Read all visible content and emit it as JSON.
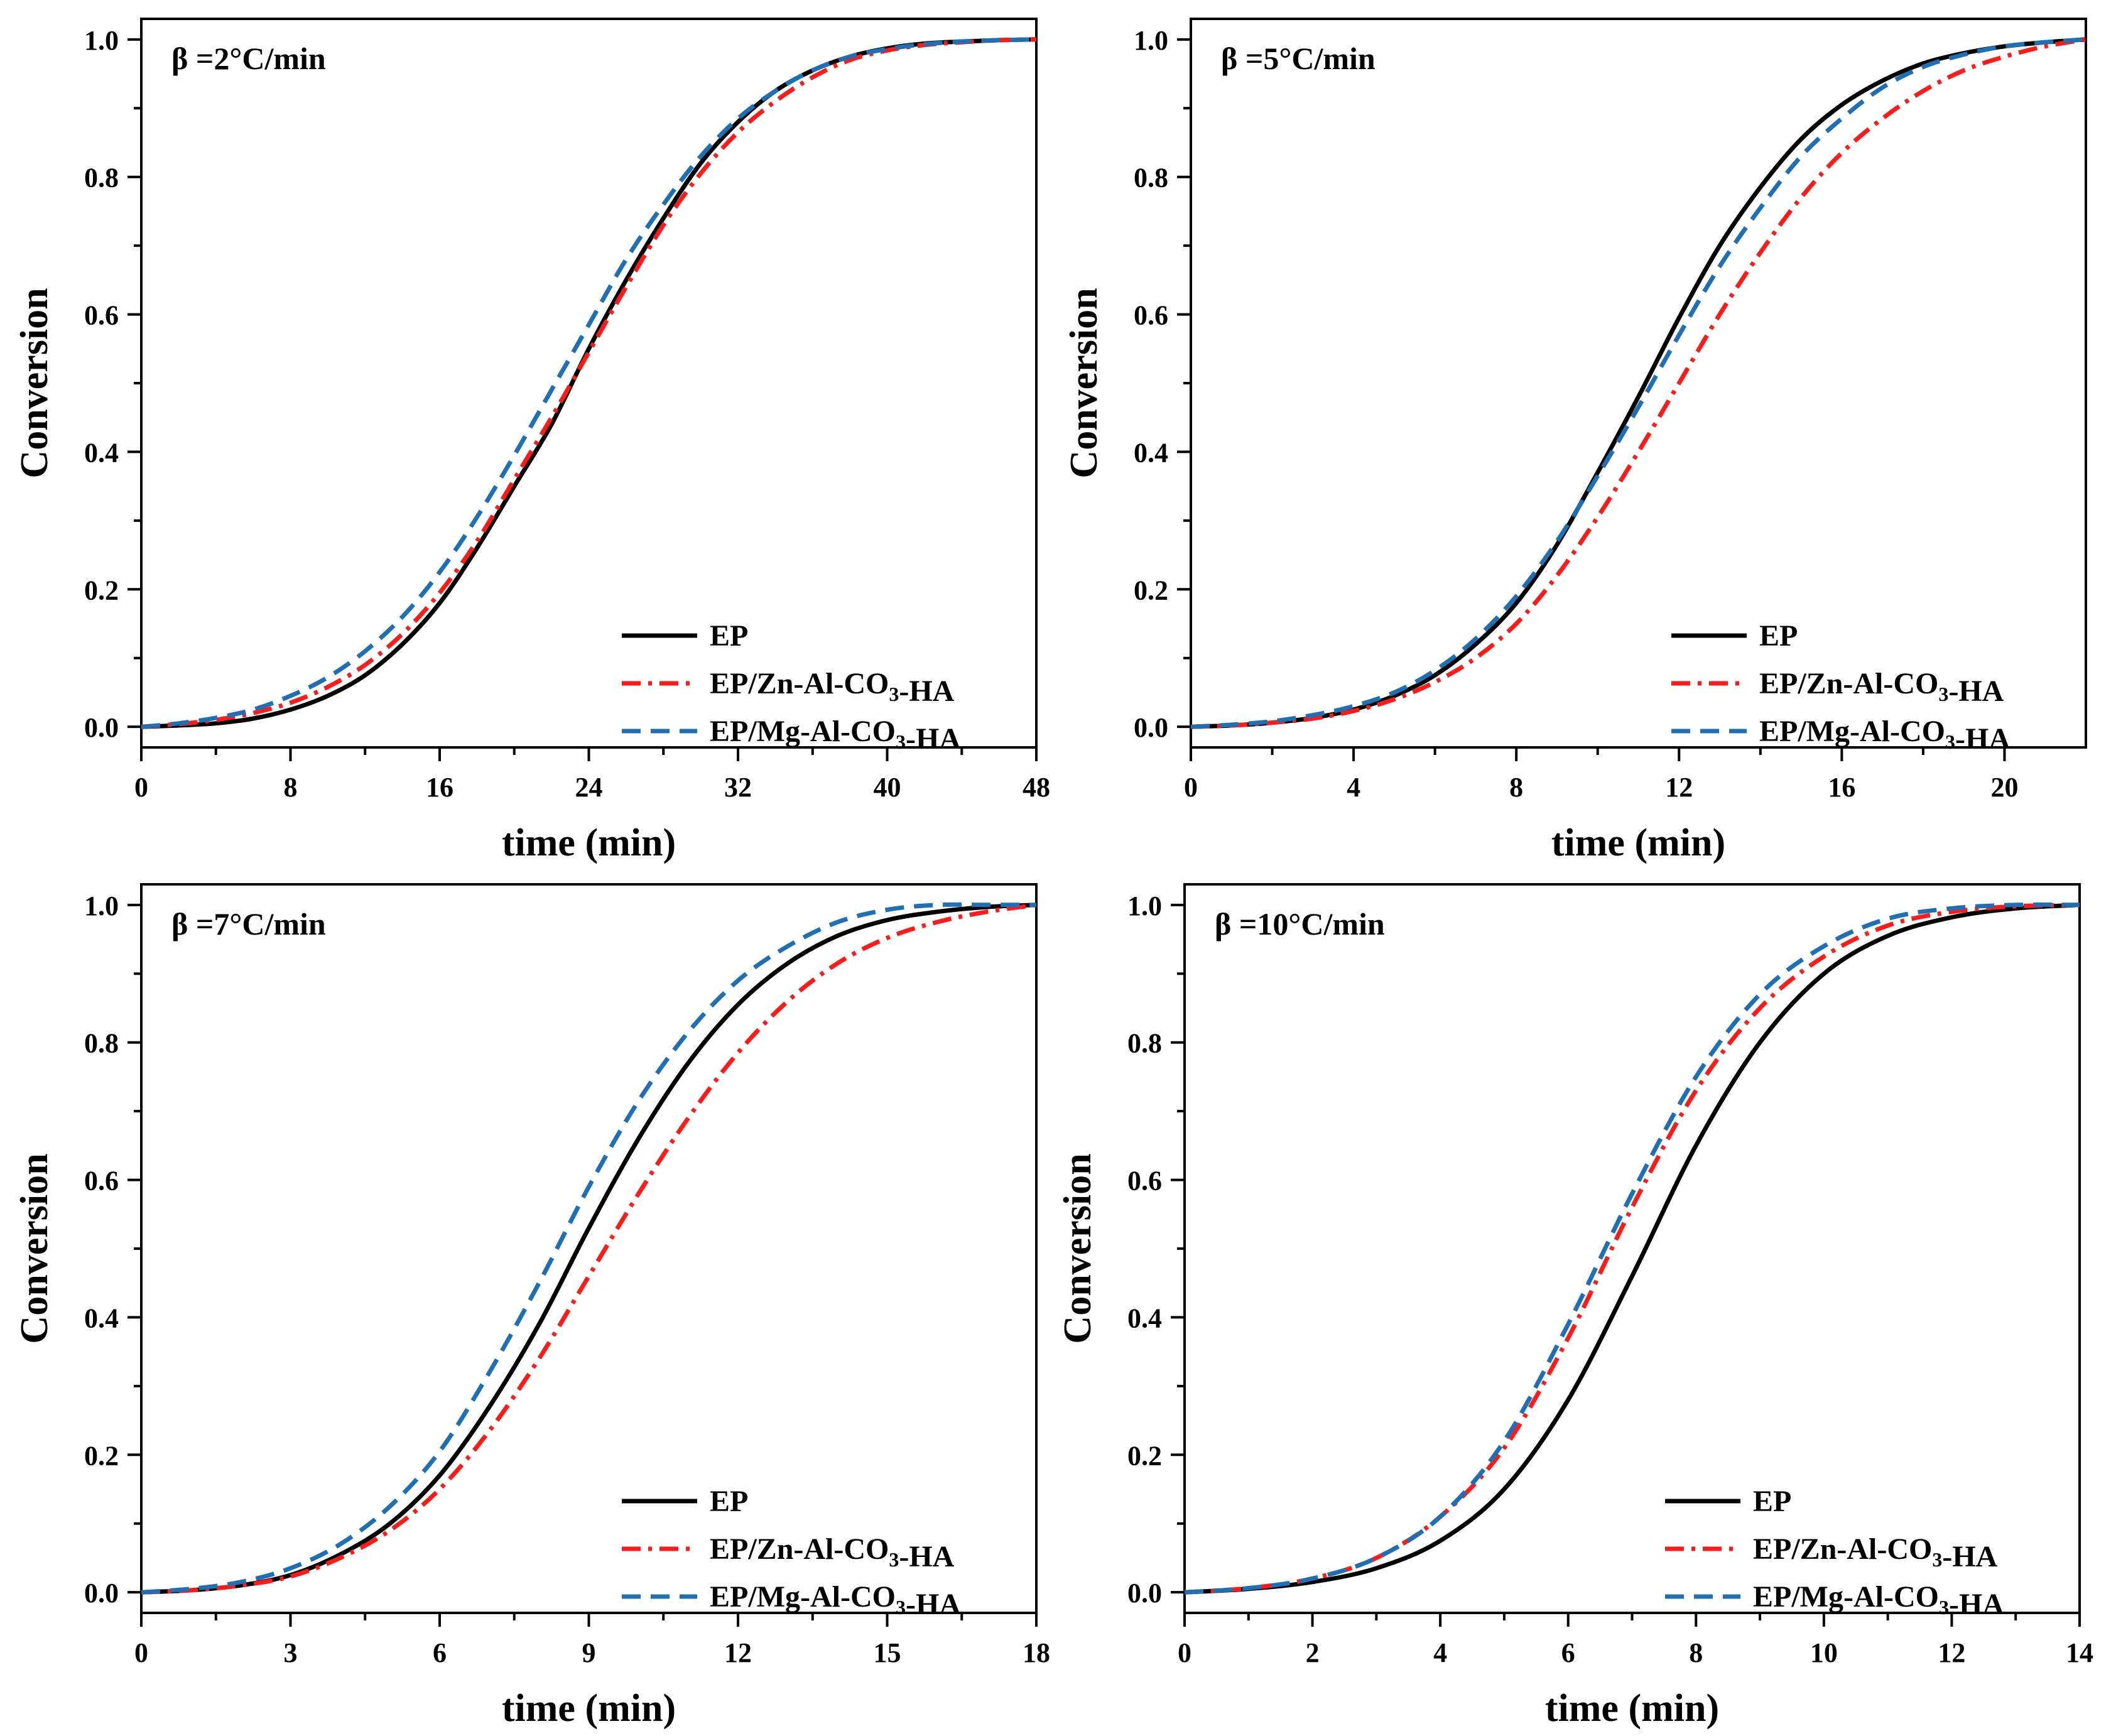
{
  "figure": {
    "series_names": [
      "EP",
      "EP/Zn-Al-CO3-HA",
      "EP/Mg-Al-CO3-HA"
    ],
    "series_colors": [
      "#000000",
      "#ff1a1a",
      "#1f6fb5"
    ]
  },
  "chart_data": [
    {
      "type": "line",
      "title": "β =2°C/min",
      "xlabel": "time (min)",
      "ylabel": "Conversion",
      "xlim": [
        0,
        48
      ],
      "ylim": [
        0,
        1.0
      ],
      "xticks": [
        0,
        8,
        16,
        24,
        32,
        40,
        48
      ],
      "yticks": [
        0.0,
        0.2,
        0.4,
        0.6,
        0.8,
        1.0
      ],
      "xtick_labels": [
        "0",
        "8",
        "16",
        "24",
        "32",
        "40",
        "48"
      ],
      "ytick_labels": [
        "0.0",
        "0.2",
        "0.4",
        "0.6",
        "0.8",
        "1.0"
      ],
      "legend_position": "bottom-right",
      "series": [
        {
          "name": "EP",
          "style": "solid",
          "color": "#000000",
          "x": [
            0,
            2,
            4,
            6,
            8,
            10,
            12,
            14,
            16,
            18,
            20,
            22,
            24,
            26,
            28,
            30,
            32,
            34,
            36,
            38,
            40,
            42,
            44,
            46,
            48
          ],
          "y": [
            0.0,
            0.002,
            0.005,
            0.012,
            0.025,
            0.045,
            0.075,
            0.12,
            0.18,
            0.26,
            0.35,
            0.44,
            0.55,
            0.65,
            0.74,
            0.82,
            0.88,
            0.925,
            0.955,
            0.975,
            0.987,
            0.994,
            0.997,
            0.999,
            1.0
          ]
        },
        {
          "name": "EP/Zn-Al-CO3-HA",
          "style": "dashdot",
          "color": "#ff1a1a",
          "x": [
            0,
            2,
            4,
            6,
            8,
            10,
            12,
            14,
            16,
            18,
            20,
            22,
            24,
            26,
            28,
            30,
            32,
            34,
            36,
            38,
            40,
            42,
            44,
            46,
            48
          ],
          "y": [
            0.0,
            0.004,
            0.01,
            0.02,
            0.035,
            0.058,
            0.09,
            0.135,
            0.195,
            0.27,
            0.36,
            0.45,
            0.545,
            0.64,
            0.73,
            0.805,
            0.865,
            0.91,
            0.945,
            0.97,
            0.984,
            0.992,
            0.996,
            0.999,
            1.0
          ]
        },
        {
          "name": "EP/Mg-Al-CO3-HA",
          "style": "dashed",
          "color": "#1f6fb5",
          "x": [
            0,
            2,
            4,
            6,
            8,
            10,
            12,
            14,
            16,
            18,
            20,
            22,
            24,
            26,
            28,
            30,
            32,
            34,
            36,
            38,
            40,
            42,
            44,
            46,
            48
          ],
          "y": [
            0.0,
            0.005,
            0.013,
            0.025,
            0.045,
            0.072,
            0.11,
            0.16,
            0.225,
            0.305,
            0.395,
            0.49,
            0.585,
            0.68,
            0.76,
            0.83,
            0.885,
            0.925,
            0.955,
            0.975,
            0.986,
            0.993,
            0.997,
            0.999,
            1.0
          ]
        }
      ]
    },
    {
      "type": "line",
      "title": "β =5°C/min",
      "xlabel": "time (min)",
      "ylabel": "Conversion",
      "xlim": [
        0,
        22
      ],
      "ylim": [
        0,
        1.0
      ],
      "xticks": [
        0,
        4,
        8,
        12,
        16,
        20
      ],
      "yticks": [
        0.0,
        0.2,
        0.4,
        0.6,
        0.8,
        1.0
      ],
      "xtick_labels": [
        "0",
        "4",
        "8",
        "12",
        "16",
        "20"
      ],
      "ytick_labels": [
        "0.0",
        "0.2",
        "0.4",
        "0.6",
        "0.8",
        "1.0"
      ],
      "legend_position": "bottom-right",
      "series": [
        {
          "name": "EP",
          "style": "solid",
          "color": "#000000",
          "x": [
            0,
            1,
            2,
            3,
            4,
            5,
            6,
            7,
            8,
            9,
            10,
            11,
            12,
            13,
            14,
            15,
            16,
            17,
            18,
            19,
            20,
            21,
            22
          ],
          "y": [
            0.0,
            0.002,
            0.006,
            0.013,
            0.025,
            0.045,
            0.075,
            0.12,
            0.18,
            0.265,
            0.37,
            0.48,
            0.595,
            0.7,
            0.785,
            0.855,
            0.905,
            0.94,
            0.965,
            0.98,
            0.99,
            0.996,
            1.0
          ]
        },
        {
          "name": "EP/Zn-Al-CO3-HA",
          "style": "dashdot",
          "color": "#ff1a1a",
          "x": [
            0,
            1,
            2,
            3,
            4,
            5,
            6,
            7,
            8,
            9,
            10,
            11,
            12,
            13,
            14,
            15,
            16,
            17,
            18,
            19,
            20,
            21,
            22
          ],
          "y": [
            0.0,
            0.002,
            0.006,
            0.012,
            0.023,
            0.04,
            0.065,
            0.1,
            0.15,
            0.22,
            0.305,
            0.4,
            0.5,
            0.6,
            0.69,
            0.77,
            0.835,
            0.885,
            0.925,
            0.955,
            0.975,
            0.99,
            1.0
          ]
        },
        {
          "name": "EP/Mg-Al-CO3-HA",
          "style": "dashed",
          "color": "#1f6fb5",
          "x": [
            0,
            1,
            2,
            3,
            4,
            5,
            6,
            7,
            8,
            9,
            10,
            11,
            12,
            13,
            14,
            15,
            16,
            17,
            18,
            19,
            20,
            21,
            22
          ],
          "y": [
            0.0,
            0.003,
            0.008,
            0.017,
            0.03,
            0.05,
            0.082,
            0.128,
            0.19,
            0.27,
            0.365,
            0.465,
            0.57,
            0.67,
            0.755,
            0.83,
            0.885,
            0.93,
            0.96,
            0.978,
            0.99,
            0.996,
            1.0
          ]
        }
      ]
    },
    {
      "type": "line",
      "title": "β =7°C/min",
      "xlabel": "time (min)",
      "ylabel": "Conversion",
      "xlim": [
        0,
        18
      ],
      "ylim": [
        0,
        1.0
      ],
      "xticks": [
        0,
        3,
        6,
        9,
        12,
        15,
        18
      ],
      "yticks": [
        0.0,
        0.2,
        0.4,
        0.6,
        0.8,
        1.0
      ],
      "xtick_labels": [
        "0",
        "3",
        "6",
        "9",
        "12",
        "15",
        "18"
      ],
      "ytick_labels": [
        "0.0",
        "0.2",
        "0.4",
        "0.6",
        "0.8",
        "1.0"
      ],
      "legend_position": "bottom-right",
      "series": [
        {
          "name": "EP",
          "style": "solid",
          "color": "#000000",
          "x": [
            0,
            1,
            2,
            3,
            4,
            5,
            6,
            7,
            8,
            9,
            10,
            11,
            12,
            13,
            14,
            15,
            16,
            17,
            18
          ],
          "y": [
            0.0,
            0.003,
            0.01,
            0.025,
            0.055,
            0.1,
            0.17,
            0.27,
            0.39,
            0.53,
            0.66,
            0.77,
            0.855,
            0.915,
            0.955,
            0.978,
            0.99,
            0.997,
            1.0
          ]
        },
        {
          "name": "EP/Zn-Al-CO3-HA",
          "style": "dashdot",
          "color": "#ff1a1a",
          "x": [
            0,
            1,
            2,
            3,
            4,
            5,
            6,
            7,
            8,
            9,
            10,
            11,
            12,
            13,
            14,
            15,
            16,
            17,
            18
          ],
          "y": [
            0.0,
            0.003,
            0.01,
            0.023,
            0.05,
            0.09,
            0.15,
            0.235,
            0.34,
            0.46,
            0.58,
            0.69,
            0.785,
            0.86,
            0.915,
            0.952,
            0.975,
            0.99,
            1.0
          ]
        },
        {
          "name": "EP/Mg-Al-CO3-HA",
          "style": "dashed",
          "color": "#1f6fb5",
          "x": [
            0,
            1,
            2,
            3,
            4,
            5,
            6,
            7,
            8,
            9,
            10,
            11,
            12,
            13,
            14,
            15,
            16,
            17,
            18
          ],
          "y": [
            0.0,
            0.005,
            0.015,
            0.035,
            0.07,
            0.125,
            0.205,
            0.32,
            0.45,
            0.59,
            0.715,
            0.815,
            0.89,
            0.94,
            0.975,
            0.993,
            1.0,
            1.0,
            1.0
          ]
        }
      ]
    },
    {
      "type": "line",
      "title": "β =10°C/min",
      "xlabel": "time (min)",
      "ylabel": "Conversion",
      "xlim": [
        0,
        14
      ],
      "ylim": [
        0,
        1.0
      ],
      "xticks": [
        0,
        2,
        4,
        6,
        8,
        10,
        12,
        14
      ],
      "yticks": [
        0.0,
        0.2,
        0.4,
        0.6,
        0.8,
        1.0
      ],
      "xtick_labels": [
        "0",
        "2",
        "4",
        "6",
        "8",
        "10",
        "12",
        "14"
      ],
      "ytick_labels": [
        "0.0",
        "0.2",
        "0.4",
        "0.6",
        "0.8",
        "1.0"
      ],
      "legend_position": "bottom-right",
      "series": [
        {
          "name": "EP",
          "style": "solid",
          "color": "#000000",
          "x": [
            0,
            1,
            2,
            3,
            4,
            5,
            6,
            7,
            8,
            9,
            10,
            11,
            12,
            13,
            14
          ],
          "y": [
            0.0,
            0.005,
            0.015,
            0.035,
            0.075,
            0.15,
            0.28,
            0.46,
            0.65,
            0.8,
            0.9,
            0.955,
            0.982,
            0.995,
            1.0
          ]
        },
        {
          "name": "EP/Zn-Al-CO3-HA",
          "style": "dashdot",
          "color": "#ff1a1a",
          "x": [
            0,
            1,
            2,
            3,
            4,
            5,
            6,
            7,
            8,
            9,
            10,
            11,
            12,
            13,
            14
          ],
          "y": [
            0.0,
            0.006,
            0.02,
            0.05,
            0.11,
            0.21,
            0.37,
            0.56,
            0.73,
            0.85,
            0.925,
            0.97,
            0.99,
            0.998,
            1.0
          ]
        },
        {
          "name": "EP/Mg-Al-CO3-HA",
          "style": "dashed",
          "color": "#1f6fb5",
          "x": [
            0,
            1,
            2,
            3,
            4,
            5,
            6,
            7,
            8,
            9,
            10,
            11,
            12,
            13,
            14
          ],
          "y": [
            0.0,
            0.006,
            0.02,
            0.05,
            0.11,
            0.22,
            0.39,
            0.58,
            0.75,
            0.87,
            0.94,
            0.98,
            0.995,
            1.0,
            1.0
          ]
        }
      ]
    }
  ]
}
